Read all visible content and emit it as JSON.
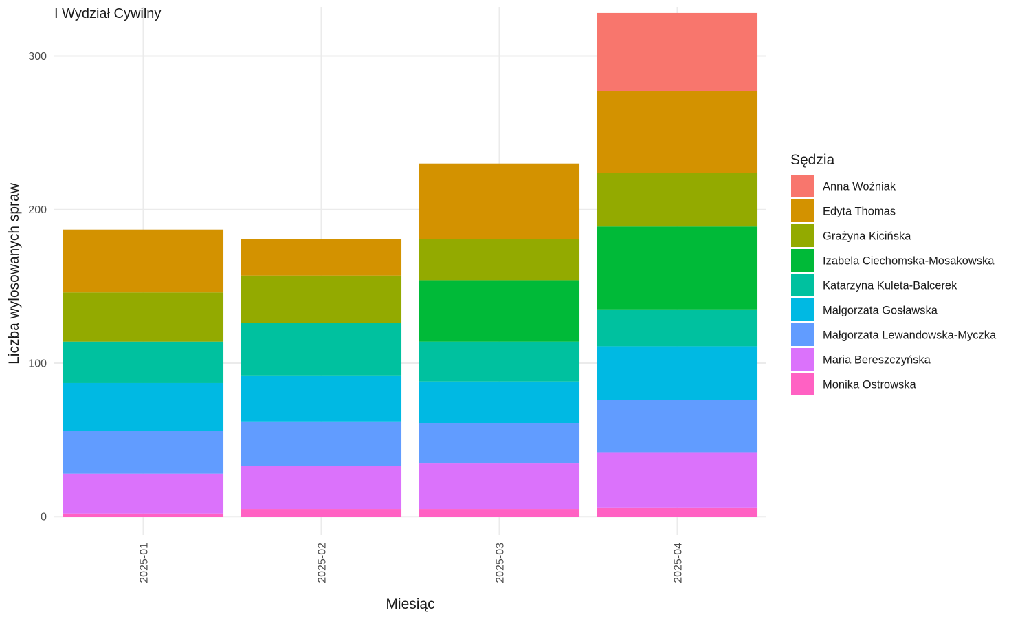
{
  "chart_data": {
    "type": "bar",
    "stacked": true,
    "title": "I Wydział Cywilny",
    "xlabel": "Miesiąc",
    "ylabel": "Liczba wylosowanych spraw",
    "categories": [
      "2025-01",
      "2025-02",
      "2025-03",
      "2025-04"
    ],
    "ylim": [
      -12,
      332
    ],
    "yticks": [
      0,
      100,
      200,
      300
    ],
    "grid": true,
    "legend": {
      "title": "Sędzia",
      "position": "right"
    },
    "series": [
      {
        "name": "Anna Woźniak",
        "color": "#F8766D",
        "values": [
          0,
          0,
          0,
          51
        ]
      },
      {
        "name": "Edyta Thomas",
        "color": "#D39200",
        "values": [
          41,
          24,
          49,
          53
        ]
      },
      {
        "name": "Grażyna Kicińska",
        "color": "#93AA00",
        "values": [
          32,
          31,
          27,
          35
        ]
      },
      {
        "name": "Izabela Ciechomska-Mosakowska",
        "color": "#00BA38",
        "values": [
          0,
          0,
          40,
          54
        ]
      },
      {
        "name": "Katarzyna Kuleta-Balcerek",
        "color": "#00C19F",
        "values": [
          27,
          34,
          26,
          24
        ]
      },
      {
        "name": "Małgorzata Gosławska",
        "color": "#00B9E3",
        "values": [
          31,
          30,
          27,
          35
        ]
      },
      {
        "name": "Małgorzata Lewandowska-Myczka",
        "color": "#619CFF",
        "values": [
          28,
          29,
          26,
          34
        ]
      },
      {
        "name": "Maria Bereszczyńska",
        "color": "#DB72FB",
        "values": [
          26,
          28,
          30,
          36
        ]
      },
      {
        "name": "Monika Ostrowska",
        "color": "#FF61C3",
        "values": [
          2,
          5,
          5,
          6
        ]
      }
    ]
  }
}
